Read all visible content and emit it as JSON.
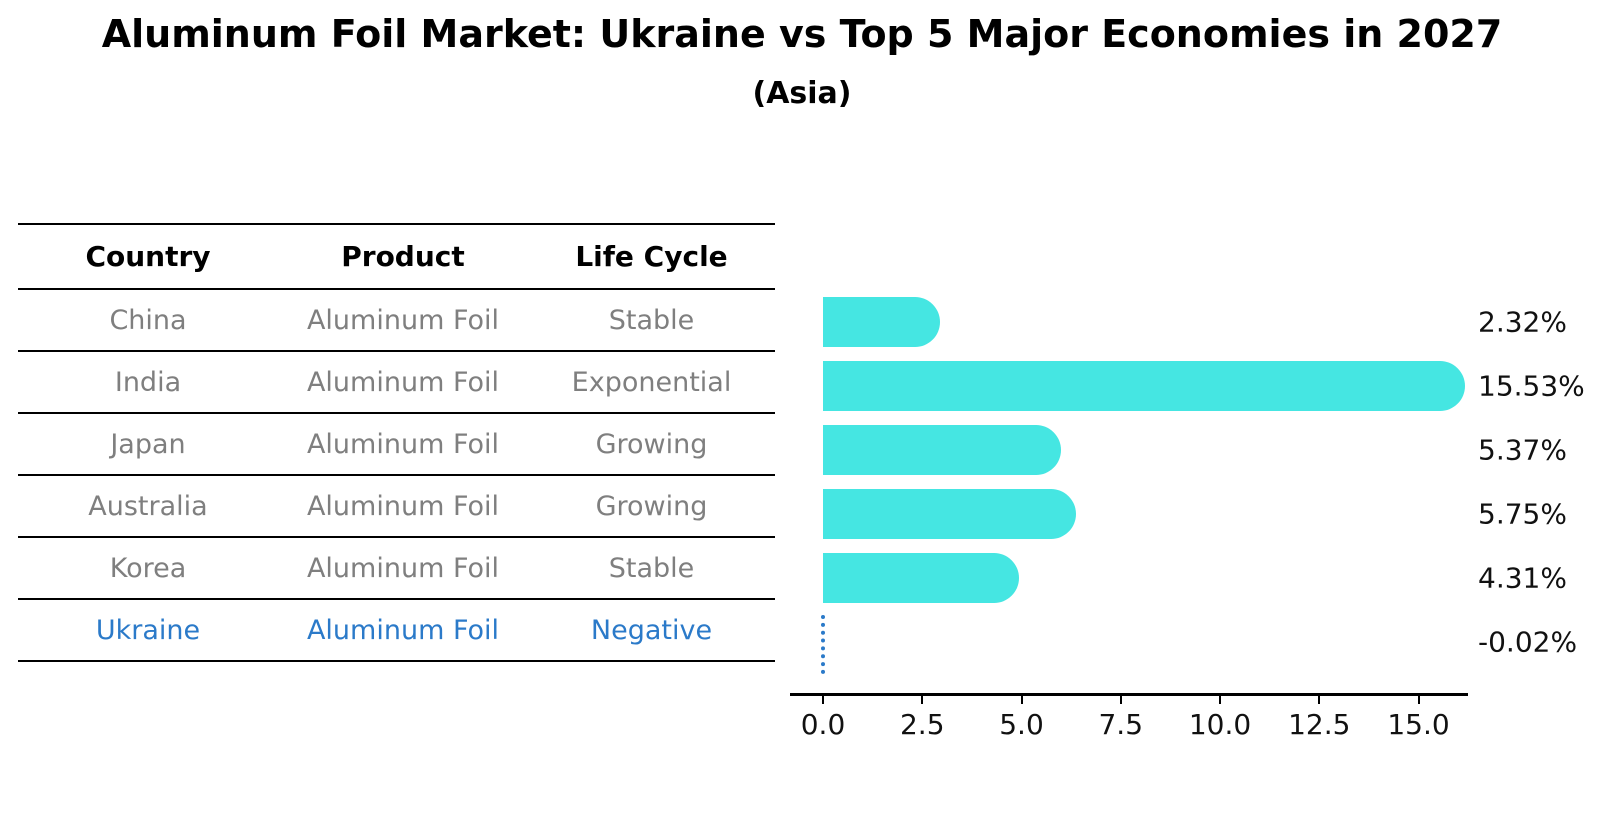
{
  "title": "Aluminum Foil Market: Ukraine vs Top 5 Major Economies in 2027",
  "subtitle": "(Asia)",
  "table": {
    "headers": {
      "country": "Country",
      "product": "Product",
      "life_cycle": "Life Cycle"
    },
    "rows": [
      {
        "country": "China",
        "product": "Aluminum Foil",
        "life_cycle": "Stable",
        "highlight": false
      },
      {
        "country": "India",
        "product": "Aluminum Foil",
        "life_cycle": "Exponential",
        "highlight": false
      },
      {
        "country": "Japan",
        "product": "Aluminum Foil",
        "life_cycle": "Growing",
        "highlight": false
      },
      {
        "country": "Australia",
        "product": "Aluminum Foil",
        "life_cycle": "Growing",
        "highlight": false
      },
      {
        "country": "Korea",
        "product": "Aluminum Foil",
        "life_cycle": "Stable",
        "highlight": false
      },
      {
        "country": "Ukraine",
        "product": "Aluminum Foil",
        "life_cycle": "Negative",
        "highlight": true
      }
    ]
  },
  "chart_data": {
    "type": "bar",
    "orientation": "horizontal",
    "categories": [
      "China",
      "India",
      "Japan",
      "Australia",
      "Korea",
      "Ukraine"
    ],
    "values": [
      2.32,
      15.53,
      5.37,
      5.75,
      4.31,
      -0.02
    ],
    "value_labels": [
      "2.32%",
      "15.53%",
      "5.37%",
      "5.75%",
      "4.31%",
      "-0.02%"
    ],
    "x_tick_labels": [
      "0.0",
      "2.5",
      "5.0",
      "7.5",
      "10.0",
      "12.5",
      "15.0"
    ],
    "x_tick_values": [
      0,
      2.5,
      5,
      7.5,
      10,
      12.5,
      15
    ],
    "xlim": [
      -0.85,
      16.3
    ],
    "ylabel": "",
    "xlabel": "",
    "grid": false,
    "legend": "none",
    "bar_color": "#45e6e2",
    "highlight_color": "#2b7ac9",
    "highlight_index": 5,
    "highlight_style": "dotted-zero-line",
    "axis_color": "#000000",
    "value_label_color": "#111111",
    "row_text_color": "#7f7f7f"
  }
}
